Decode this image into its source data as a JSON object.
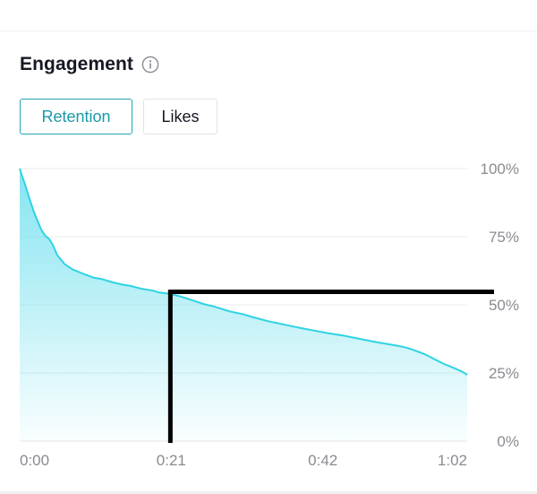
{
  "engagement": {
    "title": "Engagement",
    "info_icon": "info-icon"
  },
  "tabs": [
    {
      "label": "Retention",
      "active": true
    },
    {
      "label": "Likes",
      "active": false
    }
  ],
  "colors": {
    "accent": "#20a7b4",
    "line": "#2fd3e3",
    "fill_top": "#6fe0ee",
    "marker": "#000000"
  },
  "chart_data": {
    "type": "area",
    "title": "Retention",
    "x_tick_labels": [
      "0:00",
      "0:21",
      "0:42",
      "1:02"
    ],
    "x_tick_seconds": [
      0,
      21,
      42,
      62
    ],
    "y_tick_labels": [
      "100%",
      "75%",
      "50%",
      "25%",
      "0%"
    ],
    "y_tick_values": [
      100,
      75,
      50,
      25,
      0
    ],
    "xlim": [
      0,
      62
    ],
    "ylim": [
      0,
      100
    ],
    "grid": true,
    "series": [
      {
        "name": "Retention",
        "x": [
          0,
          0.3,
          0.7,
          1.2,
          1.9,
          2.3,
          3.0,
          3.6,
          4.1,
          4.6,
          5.2,
          6.2,
          7.4,
          8.7,
          10.2,
          11.3,
          12.7,
          14.3,
          15.4,
          16.9,
          18.5,
          19.2,
          20.3,
          21.5,
          22.4,
          24.0,
          25.5,
          26.9,
          29.1,
          31.0,
          32.4,
          34.7,
          35.7,
          37.6,
          39.1,
          40.5,
          42.7,
          44.9,
          46.6,
          49.0,
          52.5,
          53.1,
          54.3,
          56.0,
          56.5,
          57.5,
          58.1,
          58.8,
          59.9,
          61.3,
          62.0
        ],
        "values": [
          100,
          97.5,
          94.6,
          90.2,
          84.6,
          81.9,
          77.5,
          75.2,
          74.1,
          71.9,
          68.3,
          65.0,
          62.9,
          61.5,
          60.0,
          59.5,
          58.4,
          57.4,
          56.9,
          55.9,
          55.2,
          54.6,
          54.2,
          53.6,
          53.0,
          51.6,
          50.3,
          49.4,
          47.6,
          46.5,
          45.4,
          43.8,
          43.3,
          42.2,
          41.4,
          40.7,
          39.6,
          38.7,
          37.8,
          36.5,
          34.9,
          34.6,
          33.7,
          32.0,
          31.4,
          30.0,
          29.2,
          28.3,
          27.1,
          25.5,
          24.3
        ]
      }
    ],
    "annotation": {
      "type": "crosshair",
      "x": 21,
      "y": 54.6
    }
  }
}
